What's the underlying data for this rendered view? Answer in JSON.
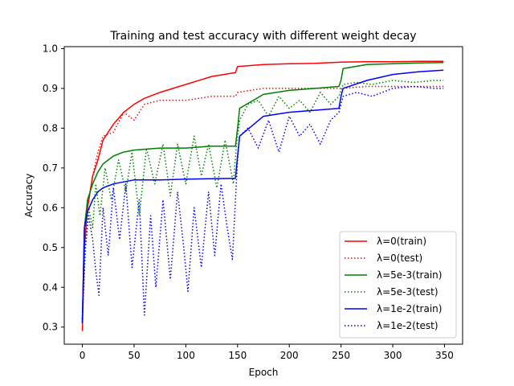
{
  "chart_data": {
    "type": "line",
    "title": "Training and test accuracy with different weight decay",
    "xlabel": "Epoch",
    "ylabel": "Accuracy",
    "xlim": [
      -17.5,
      367.5
    ],
    "ylim": [
      0.257,
      1.005
    ],
    "xticks": [
      0,
      50,
      100,
      150,
      200,
      250,
      300,
      350
    ],
    "yticks": [
      0.3,
      0.4,
      0.5,
      0.6,
      0.7,
      0.8,
      0.9,
      1.0
    ],
    "xtick_labels": [
      "0",
      "50",
      "100",
      "150",
      "200",
      "250",
      "300",
      "350"
    ],
    "ytick_labels": [
      "0.3",
      "0.4",
      "0.5",
      "0.6",
      "0.7",
      "0.8",
      "0.9",
      "1.0"
    ],
    "grid": false,
    "legend_position": "lower-right",
    "series": [
      {
        "name": "λ=0(train)",
        "color": "#ff0000",
        "style": "solid",
        "x": [
          0,
          2,
          5,
          10,
          15,
          20,
          30,
          40,
          50,
          60,
          75,
          100,
          125,
          148,
          150,
          175,
          200,
          225,
          250,
          275,
          300,
          325,
          349
        ],
        "y": [
          0.29,
          0.5,
          0.6,
          0.68,
          0.72,
          0.77,
          0.81,
          0.84,
          0.86,
          0.875,
          0.89,
          0.91,
          0.93,
          0.94,
          0.955,
          0.96,
          0.962,
          0.963,
          0.966,
          0.967,
          0.967,
          0.968,
          0.968
        ]
      },
      {
        "name": "λ=0(test)",
        "color": "#ff0000",
        "style": "dotted",
        "x": [
          0,
          2,
          5,
          10,
          15,
          20,
          30,
          40,
          50,
          60,
          75,
          100,
          125,
          148,
          150,
          175,
          200,
          225,
          250,
          275,
          300,
          325,
          349
        ],
        "y": [
          0.31,
          0.53,
          0.6,
          0.68,
          0.74,
          0.78,
          0.79,
          0.84,
          0.82,
          0.86,
          0.87,
          0.87,
          0.88,
          0.88,
          0.89,
          0.9,
          0.9,
          0.9,
          0.9,
          0.905,
          0.905,
          0.905,
          0.905
        ]
      },
      {
        "name": "λ=5e-3(train)",
        "color": "#008000",
        "style": "solid",
        "x": [
          0,
          2,
          5,
          10,
          15,
          20,
          30,
          40,
          50,
          75,
          100,
          125,
          148,
          150,
          152,
          175,
          200,
          225,
          248,
          250,
          252,
          275,
          300,
          325,
          349
        ],
        "y": [
          0.31,
          0.55,
          0.62,
          0.66,
          0.69,
          0.71,
          0.73,
          0.74,
          0.745,
          0.75,
          0.75,
          0.755,
          0.755,
          0.8,
          0.85,
          0.885,
          0.895,
          0.9,
          0.905,
          0.92,
          0.95,
          0.96,
          0.962,
          0.964,
          0.965
        ]
      },
      {
        "name": "λ=5e-3(test)",
        "color": "#008000",
        "style": "dotted",
        "x": [
          0,
          3,
          6,
          10,
          13,
          17,
          22,
          28,
          35,
          42,
          48,
          55,
          62,
          70,
          78,
          85,
          92,
          100,
          108,
          115,
          122,
          130,
          138,
          146,
          149,
          152,
          160,
          170,
          180,
          190,
          200,
          210,
          220,
          230,
          240,
          248,
          252,
          265,
          280,
          300,
          320,
          340,
          349
        ],
        "y": [
          0.32,
          0.52,
          0.6,
          0.55,
          0.66,
          0.58,
          0.7,
          0.62,
          0.72,
          0.64,
          0.74,
          0.58,
          0.75,
          0.66,
          0.76,
          0.63,
          0.76,
          0.66,
          0.78,
          0.68,
          0.76,
          0.65,
          0.77,
          0.66,
          0.76,
          0.82,
          0.86,
          0.87,
          0.83,
          0.88,
          0.85,
          0.87,
          0.84,
          0.89,
          0.86,
          0.88,
          0.91,
          0.915,
          0.91,
          0.92,
          0.915,
          0.92,
          0.92
        ]
      },
      {
        "name": "λ=1e-2(train)",
        "color": "#0000ff",
        "style": "solid",
        "x": [
          0,
          2,
          5,
          10,
          15,
          20,
          30,
          40,
          50,
          75,
          100,
          125,
          148,
          150,
          152,
          175,
          200,
          225,
          248,
          250,
          252,
          275,
          300,
          325,
          349
        ],
        "y": [
          0.31,
          0.55,
          0.59,
          0.62,
          0.64,
          0.65,
          0.66,
          0.665,
          0.67,
          0.67,
          0.672,
          0.673,
          0.674,
          0.73,
          0.78,
          0.83,
          0.84,
          0.845,
          0.85,
          0.88,
          0.9,
          0.92,
          0.935,
          0.942,
          0.946
        ]
      },
      {
        "name": "λ=1e-2(test)",
        "color": "#0000ff",
        "style": "dotted",
        "x": [
          0,
          3,
          6,
          10,
          13,
          16,
          20,
          25,
          30,
          36,
          42,
          48,
          55,
          60,
          66,
          71,
          78,
          85,
          92,
          98,
          102,
          108,
          115,
          122,
          128,
          134,
          140,
          145,
          148,
          150,
          152,
          160,
          170,
          180,
          190,
          200,
          210,
          220,
          230,
          240,
          248,
          252,
          265,
          280,
          300,
          320,
          340,
          349
        ],
        "y": [
          0.32,
          0.5,
          0.58,
          0.52,
          0.44,
          0.38,
          0.6,
          0.48,
          0.65,
          0.52,
          0.66,
          0.45,
          0.62,
          0.33,
          0.58,
          0.4,
          0.62,
          0.42,
          0.64,
          0.5,
          0.39,
          0.6,
          0.45,
          0.64,
          0.48,
          0.66,
          0.55,
          0.47,
          0.62,
          0.72,
          0.78,
          0.8,
          0.75,
          0.82,
          0.74,
          0.83,
          0.78,
          0.81,
          0.76,
          0.82,
          0.84,
          0.88,
          0.89,
          0.88,
          0.9,
          0.905,
          0.9,
          0.9
        ]
      }
    ]
  }
}
